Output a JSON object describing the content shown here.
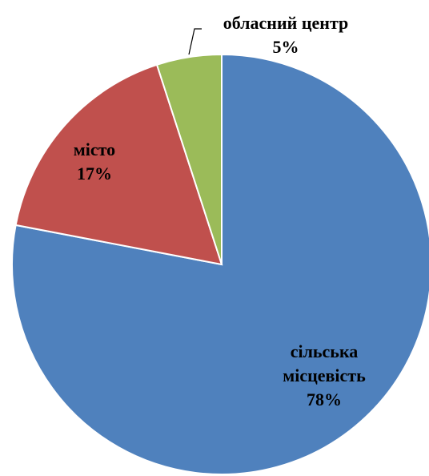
{
  "chart_data": {
    "type": "pie",
    "categories": [
      "сільська місцевість",
      "місто",
      "обласний центр"
    ],
    "values": [
      78,
      17,
      5
    ],
    "value_labels": [
      "78%",
      "17%",
      "5%"
    ],
    "colors": [
      "#4f81bd",
      "#c0504d",
      "#9bbb59"
    ]
  }
}
